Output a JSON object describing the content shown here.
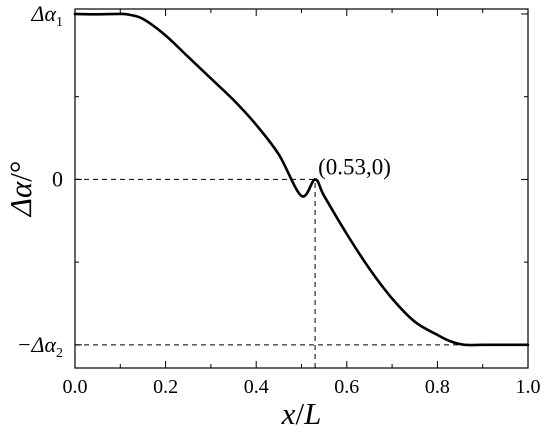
{
  "chart_data": {
    "type": "line",
    "xlabel_var": "x",
    "xlabel_sep": "/",
    "xlabel_unit": "L",
    "ylabel_symbol": "Δα",
    "ylabel_unit": "/°",
    "xlim": [
      0.0,
      1.0
    ],
    "ylim": [
      -1.14,
      1.03
    ],
    "x_ticks": [
      {
        "value": 0.0,
        "label": "0.0"
      },
      {
        "value": 0.2,
        "label": "0.2"
      },
      {
        "value": 0.4,
        "label": "0.4"
      },
      {
        "value": 0.6,
        "label": "0.6"
      },
      {
        "value": 0.8,
        "label": "0.8"
      },
      {
        "value": 1.0,
        "label": "1.0"
      }
    ],
    "x_minor_ticks": [
      0.1,
      0.3,
      0.5,
      0.7,
      0.9
    ],
    "y_ticks": [
      {
        "value": 1.0,
        "base": "Δα",
        "sub": "1"
      },
      {
        "value": 0.0,
        "base": "0",
        "sub": ""
      },
      {
        "value": -1.0,
        "base": "−Δα",
        "sub": "2"
      }
    ],
    "y_minor_ticks": [
      0.5,
      -0.5
    ],
    "series": [
      {
        "x": [
          0.0,
          0.05,
          0.1,
          0.12,
          0.15,
          0.2,
          0.25,
          0.3,
          0.35,
          0.4,
          0.45,
          0.5,
          0.53,
          0.55,
          0.6,
          0.65,
          0.7,
          0.75,
          0.8,
          0.83,
          0.86,
          0.9,
          0.95,
          1.0
        ],
        "y": [
          1.0,
          0.998,
          1.0,
          0.995,
          0.97,
          0.87,
          0.74,
          0.61,
          0.48,
          0.33,
          0.15,
          -0.1,
          0.0,
          -0.1,
          -0.33,
          -0.54,
          -0.72,
          -0.86,
          -0.94,
          -0.98,
          -1.0,
          -1.0,
          -1.0,
          -1.0
        ]
      }
    ],
    "annotation": {
      "x": 0.53,
      "y": 0.0,
      "text": "(0.53,0)"
    },
    "guides": [
      {
        "orientation": "horizontal",
        "value": 0.0,
        "from": 0.0,
        "to": 0.53
      },
      {
        "orientation": "vertical",
        "value": 0.53,
        "from": -1.14,
        "to": 0.0
      },
      {
        "orientation": "horizontal",
        "value": -1.0,
        "from": 0.0,
        "to": 1.0
      }
    ],
    "grid": false,
    "legend": "none"
  }
}
